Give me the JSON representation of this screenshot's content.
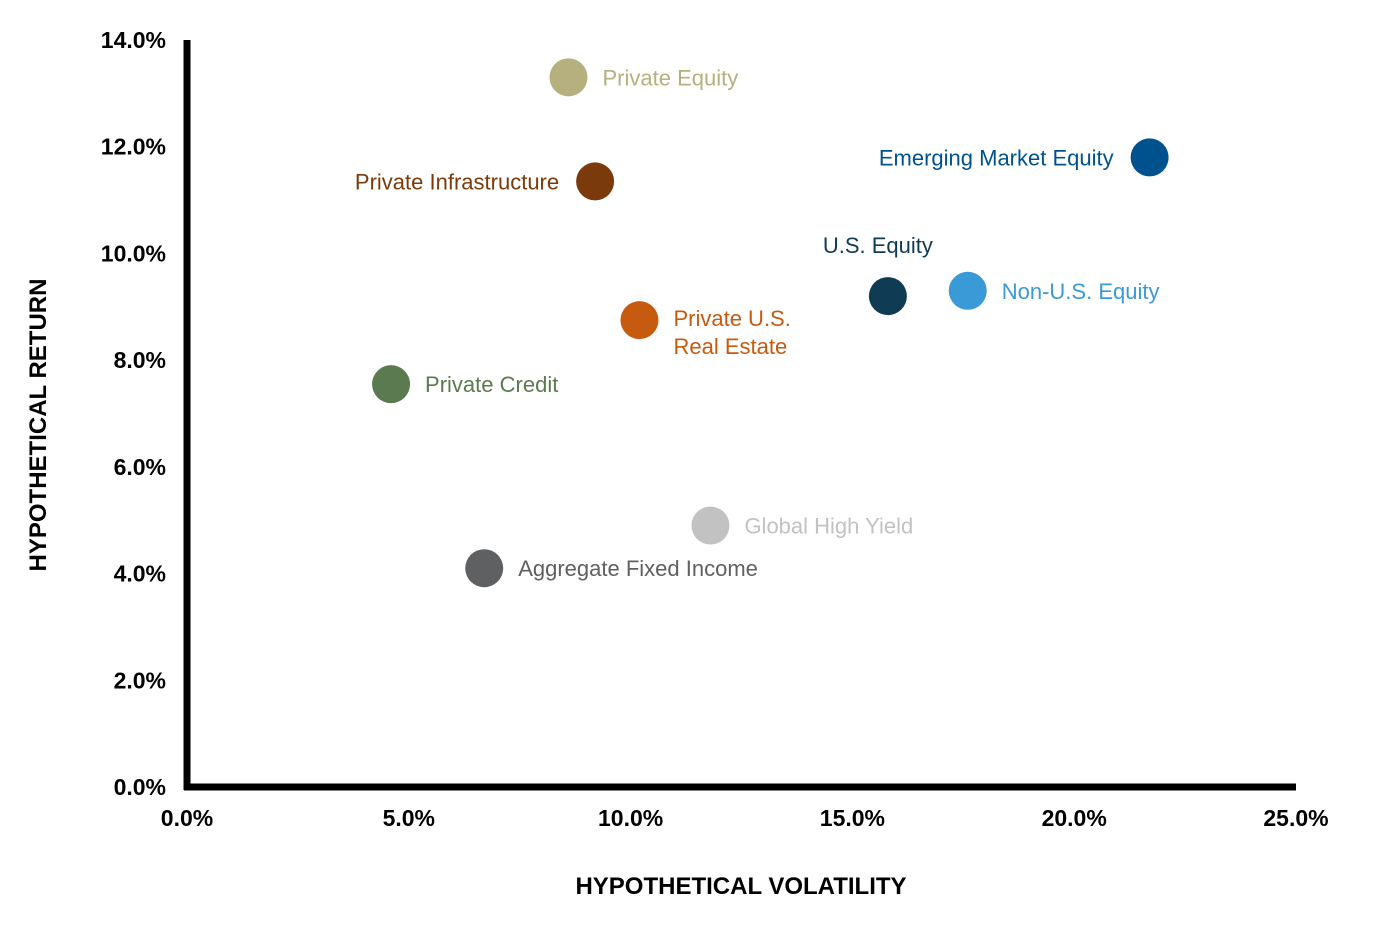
{
  "chart_data": {
    "type": "scatter",
    "title": "",
    "xlabel": "HYPOTHETICAL VOLATILITY",
    "ylabel": "HYPOTHETICAL RETURN",
    "xlim": [
      0,
      25
    ],
    "ylim": [
      0,
      14
    ],
    "x_ticks": [
      "0.0%",
      "5.0%",
      "10.0%",
      "15.0%",
      "20.0%",
      "25.0%"
    ],
    "y_ticks": [
      "0.0%",
      "2.0%",
      "4.0%",
      "6.0%",
      "8.0%",
      "10.0%",
      "12.0%",
      "14.0%"
    ],
    "grid": false,
    "legend": "none",
    "points": [
      {
        "label": [
          "Private Equity"
        ],
        "x": 8.6,
        "y": 13.3,
        "color": "#b5b07e",
        "label_side": "right"
      },
      {
        "label": [
          "Emerging Market Equity"
        ],
        "x": 21.7,
        "y": 11.8,
        "color": "#00528f",
        "label_side": "left"
      },
      {
        "label": [
          "Private Infrastructure"
        ],
        "x": 9.2,
        "y": 11.35,
        "color": "#7b3a0b",
        "label_side": "left"
      },
      {
        "label": [
          "U.S. Equity"
        ],
        "x": 15.8,
        "y": 9.2,
        "color": "#0f3b55",
        "label_side": "above"
      },
      {
        "label": [
          "Non-U.S. Equity"
        ],
        "x": 17.6,
        "y": 9.3,
        "color": "#3a9ad8",
        "label_side": "right"
      },
      {
        "label": [
          "Private U.S.",
          "Real Estate"
        ],
        "x": 10.2,
        "y": 8.75,
        "color": "#c65a0f",
        "label_side": "right"
      },
      {
        "label": [
          "Private Credit"
        ],
        "x": 4.6,
        "y": 7.55,
        "color": "#5c7a4f",
        "label_side": "right"
      },
      {
        "label": [
          "Global High Yield"
        ],
        "x": 11.8,
        "y": 4.9,
        "color": "#c2c2c2",
        "label_side": "right"
      },
      {
        "label": [
          "Aggregate Fixed Income"
        ],
        "x": 6.7,
        "y": 4.1,
        "color": "#5f6062",
        "label_side": "right"
      }
    ]
  }
}
